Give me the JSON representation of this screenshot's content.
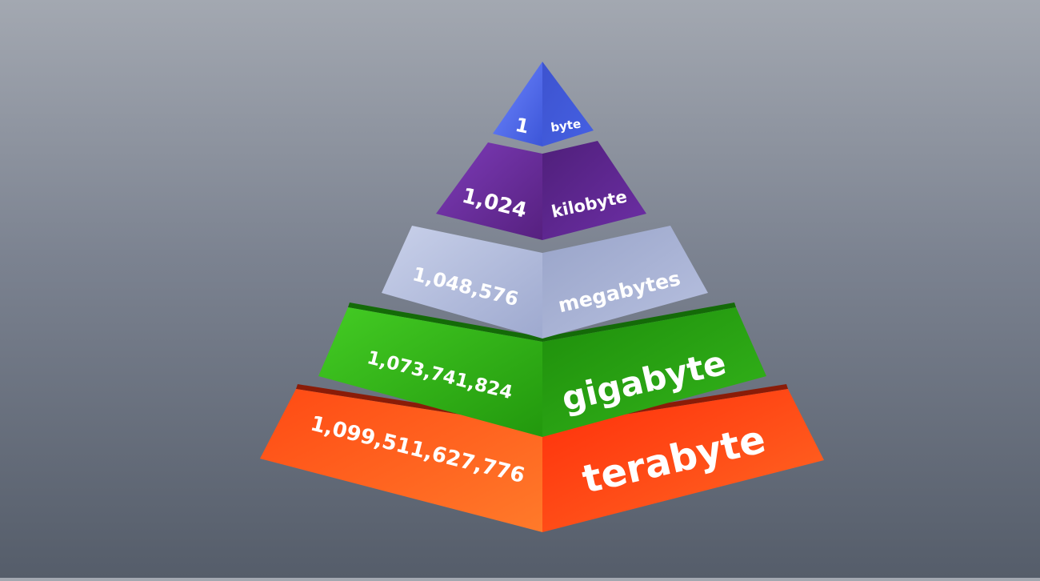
{
  "pyramid": {
    "levels": [
      {
        "number": "1",
        "unit": "byte",
        "left_color": "#4a64e8",
        "right_color": "#3f57d6"
      },
      {
        "number": "1,024",
        "unit": "kilobyte",
        "left_color": "#6b2fa0",
        "right_color": "#5a258c"
      },
      {
        "number": "1,048,576",
        "unit": "megabytes",
        "left_color": "#b6bfdb",
        "right_color": "#9fa9cc"
      },
      {
        "number": "1,073,741,824",
        "unit": "gigabyte",
        "left_color": "#33b81a",
        "right_color": "#28a012"
      },
      {
        "number": "1,099,511,627,776",
        "unit": "terabyte",
        "left_color": "#ff5a1a",
        "right_color": "#ff3b0d"
      }
    ]
  }
}
